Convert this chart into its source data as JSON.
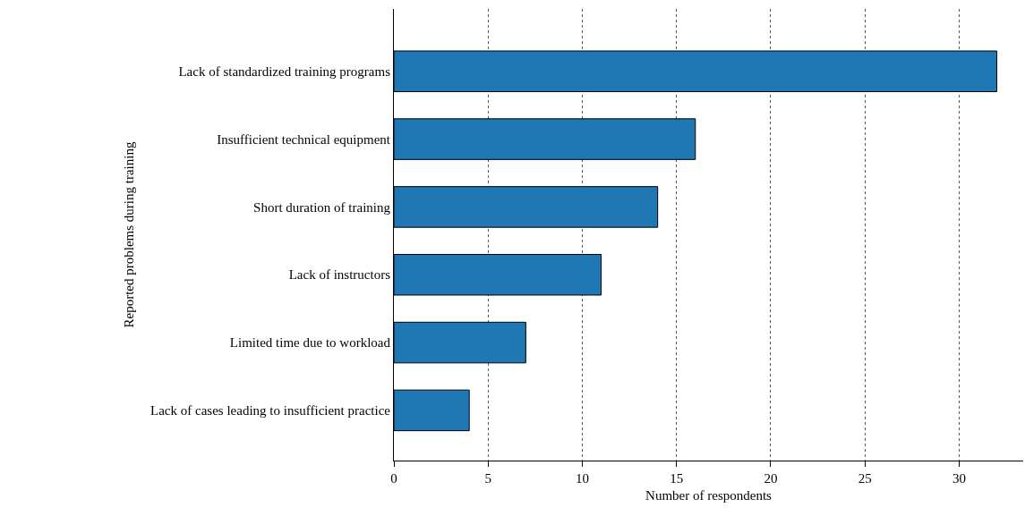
{
  "chart_data": {
    "type": "bar",
    "orientation": "horizontal",
    "xlabel": "Number of respondents",
    "ylabel": "Reported problems during training",
    "categories": [
      "Lack of standardized training programs",
      "Insufficient technical equipment",
      "Short duration of training",
      "Lack of instructors",
      "Limited time due to workload",
      "Lack of cases leading to insufficient practice"
    ],
    "values": [
      32,
      16,
      14,
      11,
      7,
      4
    ],
    "color": "#1f77b4",
    "xlim": [
      0,
      33.4
    ],
    "xticks": [
      0,
      5,
      10,
      15,
      20,
      25,
      30
    ],
    "grid": "x"
  }
}
